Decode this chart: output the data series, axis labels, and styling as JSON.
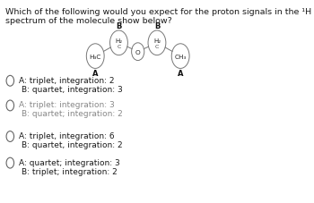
{
  "title_line1": "Which of the following would you expect for the proton signals in the ¹H NMR",
  "title_line2": "spectrum of the molecule show below?",
  "options": [
    {
      "line1": "A: triplet, integration: 2",
      "line2": "B: quartet, integration: 3",
      "faded": false
    },
    {
      "line1": "A: triplet: integration: 3",
      "line2": "B: quartet; integration: 2",
      "faded": true
    },
    {
      "line1": "A: triplet, integration: 6",
      "line2": "B: quartet, integration: 2",
      "faded": false
    },
    {
      "line1": "A: quartet; integration: 3",
      "line2": "B: triplet; integration: 2",
      "faded": false
    }
  ],
  "background_color": "#ffffff",
  "text_color": "#1a1a1a",
  "faded_color": "#888888",
  "font_size_title": 6.8,
  "font_size_options": 6.5,
  "font_size_molecule": 5.0,
  "font_size_label": 6.0
}
